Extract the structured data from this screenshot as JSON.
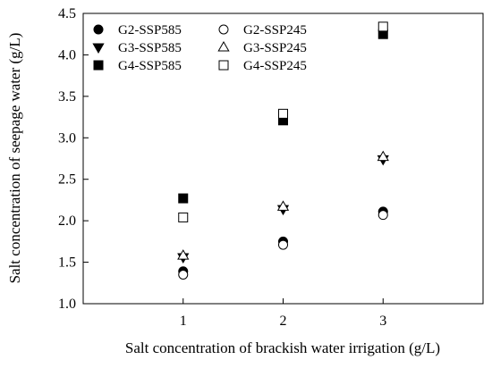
{
  "chart_data": {
    "type": "scatter",
    "xlabel": "Salt concentration of brackish water irrigation (g/L)",
    "ylabel": "Salt concentration of seepage water (g/L)",
    "xlim": [
      0.0,
      4.0
    ],
    "ylim": [
      1.0,
      4.5
    ],
    "x_ticks": [
      1,
      2,
      3
    ],
    "x_tick_labels": [
      "1",
      "2",
      "3"
    ],
    "y_ticks": [
      1.0,
      1.5,
      2.0,
      2.5,
      3.0,
      3.5,
      4.0,
      4.5
    ],
    "y_tick_labels": [
      "1.0",
      "1.5",
      "2.0",
      "2.5",
      "3.0",
      "3.5",
      "4.0",
      "4.5"
    ],
    "grid": false,
    "legend_position": "top-left",
    "x": [
      1,
      2,
      3
    ],
    "series": [
      {
        "name": "G2-SSP585",
        "marker": "circle-filled",
        "values": [
          1.39,
          1.75,
          2.11
        ]
      },
      {
        "name": "G2-SSP245",
        "marker": "circle-open",
        "values": [
          1.35,
          1.71,
          2.07
        ]
      },
      {
        "name": "G3-SSP585",
        "marker": "triangle-down-filled",
        "values": [
          1.56,
          2.14,
          2.74
        ]
      },
      {
        "name": "G3-SSP245",
        "marker": "triangle-up-open",
        "values": [
          1.58,
          2.17,
          2.77
        ]
      },
      {
        "name": "G4-SSP585",
        "marker": "square-filled",
        "values": [
          2.27,
          3.21,
          4.25
        ]
      },
      {
        "name": "G4-SSP245",
        "marker": "square-open",
        "values": [
          2.04,
          3.29,
          4.34
        ]
      }
    ],
    "colors": {
      "marker": "#000000",
      "axis": "#000000",
      "background": "#ffffff"
    }
  }
}
